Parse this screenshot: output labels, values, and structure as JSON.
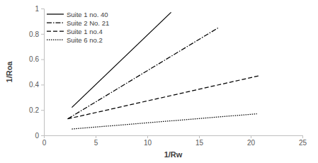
{
  "chart_data": {
    "type": "line",
    "x_label": "1/Rw",
    "y_label": "1/Roa",
    "xlim": [
      0,
      25
    ],
    "xticks": [
      0,
      5,
      10,
      15,
      20,
      25
    ],
    "ylim": [
      0,
      1
    ],
    "yticks": [
      0,
      0.2,
      0.4,
      0.6,
      0.8,
      1
    ],
    "grid": false,
    "legend": "upper left",
    "series": [
      {
        "name": "Suite 1 no. 40",
        "color": "#000000",
        "line_style": "solid",
        "x": [
          2.7,
          12.3
        ],
        "values": [
          0.22,
          0.97
        ]
      },
      {
        "name": "Suite 2 No. 21",
        "color": "#000000",
        "line_style": "dashdot",
        "x": [
          2.3,
          16.9
        ],
        "values": [
          0.13,
          0.85
        ]
      },
      {
        "name": "Suite 1 no.4",
        "color": "#000000",
        "line_style": "dashed",
        "x": [
          2.3,
          20.8
        ],
        "values": [
          0.13,
          0.47
        ]
      },
      {
        "name": "Suite 6 no.2",
        "color": "#000000",
        "line_style": "dotted",
        "x": [
          2.7,
          20.6
        ],
        "values": [
          0.05,
          0.17
        ]
      }
    ]
  }
}
